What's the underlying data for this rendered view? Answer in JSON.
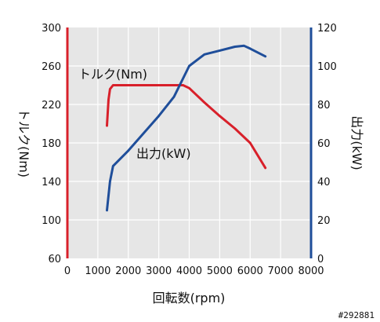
{
  "chart_data": {
    "type": "line",
    "xlabel": "回転数(rpm)",
    "xlim": [
      0,
      8000
    ],
    "x_ticks": [
      0,
      1000,
      2000,
      3000,
      4000,
      5000,
      6000,
      7000,
      8000
    ],
    "left_axis": {
      "label": "トルク(Nm)",
      "ylim": [
        60,
        300
      ],
      "ticks": [
        60,
        100,
        140,
        180,
        220,
        260,
        300
      ],
      "color": "#d8202a"
    },
    "right_axis": {
      "label": "出力(kW)",
      "ylim": [
        0,
        120
      ],
      "ticks": [
        0,
        20,
        40,
        60,
        80,
        100,
        120
      ],
      "color": "#1f4e9a"
    },
    "grid": true,
    "series": [
      {
        "name": "トルク(Nm)",
        "axis": "left",
        "color": "#d8202a",
        "x": [
          1300,
          1350,
          1400,
          1500,
          2000,
          3000,
          3800,
          4000,
          4500,
          5000,
          5500,
          6000,
          6500
        ],
        "y": [
          198,
          225,
          236,
          240,
          240,
          240,
          240,
          237,
          222,
          208,
          195,
          180,
          154
        ]
      },
      {
        "name": "出力(kW)",
        "axis": "right",
        "color": "#1f4e9a",
        "x": [
          1300,
          1400,
          1500,
          2000,
          2500,
          3000,
          3500,
          4000,
          4500,
          5000,
          5500,
          5800,
          6000,
          6500
        ],
        "y": [
          25,
          40,
          48,
          56,
          65,
          74,
          84,
          100,
          106,
          108,
          110,
          110.5,
          109,
          105
        ]
      }
    ],
    "annotations": [
      {
        "text": "トルク(Nm)",
        "series": "トルク(Nm)"
      },
      {
        "text": "出力(kW)",
        "series": "出力(kW)"
      }
    ]
  },
  "watermark": "#292881"
}
